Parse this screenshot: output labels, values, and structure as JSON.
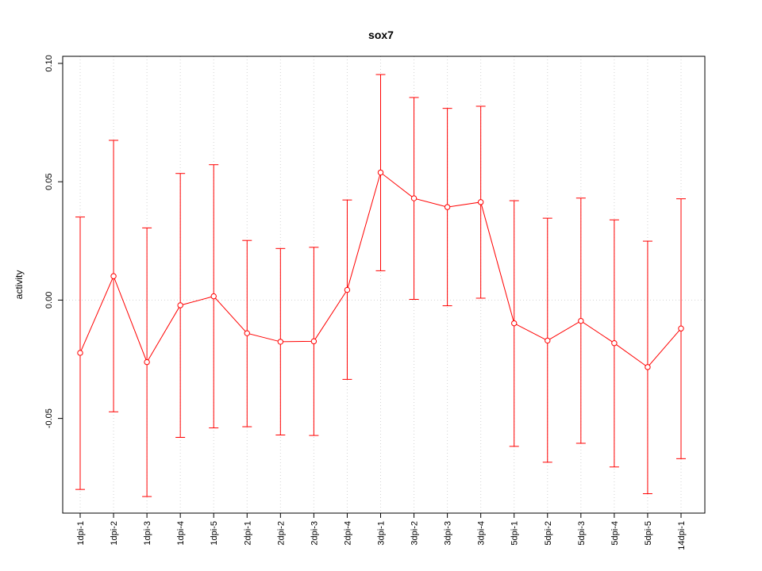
{
  "chart_data": {
    "type": "line",
    "title": "sox7",
    "xlabel": "",
    "ylabel": "activity",
    "categories": [
      "1dpi-1",
      "1dpi-2",
      "1dpi-3",
      "1dpi-4",
      "1dpi-5",
      "2dpi-1",
      "2dpi-2",
      "2dpi-3",
      "2dpi-4",
      "3dpi-1",
      "3dpi-2",
      "3dpi-3",
      "3dpi-4",
      "5dpi-1",
      "5dpi-2",
      "5dpi-3",
      "5dpi-4",
      "5dpi-5",
      "14dpi-1"
    ],
    "yticks": [
      -0.05,
      0.0,
      0.05,
      0.1
    ],
    "ytick_labels": [
      "-0.05",
      "0.00",
      "0.05",
      "0.10"
    ],
    "ylim": [
      -0.09,
      0.103
    ],
    "grid": true,
    "series": [
      {
        "values": [
          -0.0223,
          0.0101,
          -0.0262,
          -0.0022,
          0.0016,
          -0.014,
          -0.0176,
          -0.0174,
          0.0043,
          0.0539,
          0.043,
          0.0393,
          0.0414,
          -0.0098,
          -0.0171,
          -0.0088,
          -0.0182,
          -0.0283,
          -0.012
        ],
        "upper": [
          0.0351,
          0.0675,
          0.0305,
          0.0535,
          0.0572,
          0.0252,
          0.0218,
          0.0223,
          0.0423,
          0.0953,
          0.0856,
          0.081,
          0.0819,
          0.042,
          0.0346,
          0.0431,
          0.0339,
          0.0249,
          0.0428
        ],
        "lower": [
          -0.08,
          -0.0472,
          -0.083,
          -0.058,
          -0.054,
          -0.0535,
          -0.057,
          -0.0572,
          -0.0335,
          0.0124,
          0.0003,
          -0.0024,
          0.0008,
          -0.0618,
          -0.0685,
          -0.0605,
          -0.0705,
          -0.0818,
          -0.067
        ],
        "color": "#ff0000"
      }
    ]
  }
}
